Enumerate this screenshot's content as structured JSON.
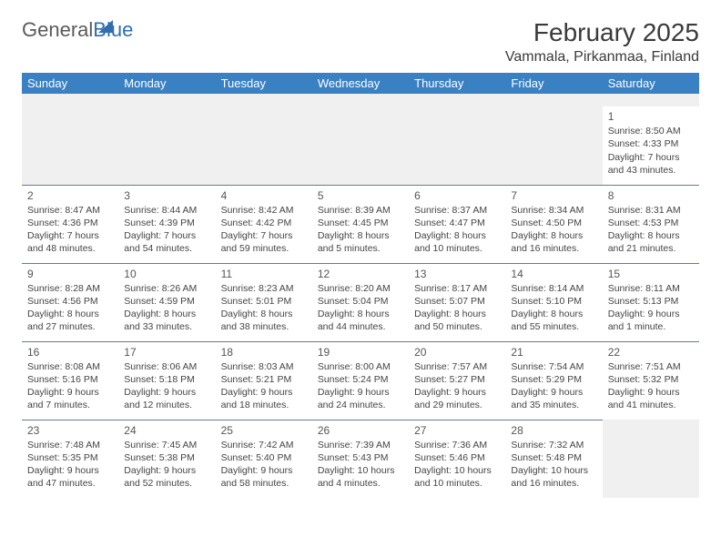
{
  "brand": {
    "part1": "General",
    "part2": "Blue"
  },
  "title": "February 2025",
  "location": "Vammala, Pirkanmaa, Finland",
  "colors": {
    "header_bg": "#3a81c4",
    "header_fg": "#ffffff",
    "rule": "#6b7a8a",
    "spacer_bg": "#f0f0f0",
    "brand_blue": "#2f6fb0",
    "brand_gray": "#5a5a5a"
  },
  "dow": [
    "Sunday",
    "Monday",
    "Tuesday",
    "Wednesday",
    "Thursday",
    "Friday",
    "Saturday"
  ],
  "weeks": [
    [
      null,
      null,
      null,
      null,
      null,
      null,
      {
        "n": "1",
        "sr": "Sunrise: 8:50 AM",
        "ss": "Sunset: 4:33 PM",
        "d1": "Daylight: 7 hours",
        "d2": "and 43 minutes."
      }
    ],
    [
      {
        "n": "2",
        "sr": "Sunrise: 8:47 AM",
        "ss": "Sunset: 4:36 PM",
        "d1": "Daylight: 7 hours",
        "d2": "and 48 minutes."
      },
      {
        "n": "3",
        "sr": "Sunrise: 8:44 AM",
        "ss": "Sunset: 4:39 PM",
        "d1": "Daylight: 7 hours",
        "d2": "and 54 minutes."
      },
      {
        "n": "4",
        "sr": "Sunrise: 8:42 AM",
        "ss": "Sunset: 4:42 PM",
        "d1": "Daylight: 7 hours",
        "d2": "and 59 minutes."
      },
      {
        "n": "5",
        "sr": "Sunrise: 8:39 AM",
        "ss": "Sunset: 4:45 PM",
        "d1": "Daylight: 8 hours",
        "d2": "and 5 minutes."
      },
      {
        "n": "6",
        "sr": "Sunrise: 8:37 AM",
        "ss": "Sunset: 4:47 PM",
        "d1": "Daylight: 8 hours",
        "d2": "and 10 minutes."
      },
      {
        "n": "7",
        "sr": "Sunrise: 8:34 AM",
        "ss": "Sunset: 4:50 PM",
        "d1": "Daylight: 8 hours",
        "d2": "and 16 minutes."
      },
      {
        "n": "8",
        "sr": "Sunrise: 8:31 AM",
        "ss": "Sunset: 4:53 PM",
        "d1": "Daylight: 8 hours",
        "d2": "and 21 minutes."
      }
    ],
    [
      {
        "n": "9",
        "sr": "Sunrise: 8:28 AM",
        "ss": "Sunset: 4:56 PM",
        "d1": "Daylight: 8 hours",
        "d2": "and 27 minutes."
      },
      {
        "n": "10",
        "sr": "Sunrise: 8:26 AM",
        "ss": "Sunset: 4:59 PM",
        "d1": "Daylight: 8 hours",
        "d2": "and 33 minutes."
      },
      {
        "n": "11",
        "sr": "Sunrise: 8:23 AM",
        "ss": "Sunset: 5:01 PM",
        "d1": "Daylight: 8 hours",
        "d2": "and 38 minutes."
      },
      {
        "n": "12",
        "sr": "Sunrise: 8:20 AM",
        "ss": "Sunset: 5:04 PM",
        "d1": "Daylight: 8 hours",
        "d2": "and 44 minutes."
      },
      {
        "n": "13",
        "sr": "Sunrise: 8:17 AM",
        "ss": "Sunset: 5:07 PM",
        "d1": "Daylight: 8 hours",
        "d2": "and 50 minutes."
      },
      {
        "n": "14",
        "sr": "Sunrise: 8:14 AM",
        "ss": "Sunset: 5:10 PM",
        "d1": "Daylight: 8 hours",
        "d2": "and 55 minutes."
      },
      {
        "n": "15",
        "sr": "Sunrise: 8:11 AM",
        "ss": "Sunset: 5:13 PM",
        "d1": "Daylight: 9 hours",
        "d2": "and 1 minute."
      }
    ],
    [
      {
        "n": "16",
        "sr": "Sunrise: 8:08 AM",
        "ss": "Sunset: 5:16 PM",
        "d1": "Daylight: 9 hours",
        "d2": "and 7 minutes."
      },
      {
        "n": "17",
        "sr": "Sunrise: 8:06 AM",
        "ss": "Sunset: 5:18 PM",
        "d1": "Daylight: 9 hours",
        "d2": "and 12 minutes."
      },
      {
        "n": "18",
        "sr": "Sunrise: 8:03 AM",
        "ss": "Sunset: 5:21 PM",
        "d1": "Daylight: 9 hours",
        "d2": "and 18 minutes."
      },
      {
        "n": "19",
        "sr": "Sunrise: 8:00 AM",
        "ss": "Sunset: 5:24 PM",
        "d1": "Daylight: 9 hours",
        "d2": "and 24 minutes."
      },
      {
        "n": "20",
        "sr": "Sunrise: 7:57 AM",
        "ss": "Sunset: 5:27 PM",
        "d1": "Daylight: 9 hours",
        "d2": "and 29 minutes."
      },
      {
        "n": "21",
        "sr": "Sunrise: 7:54 AM",
        "ss": "Sunset: 5:29 PM",
        "d1": "Daylight: 9 hours",
        "d2": "and 35 minutes."
      },
      {
        "n": "22",
        "sr": "Sunrise: 7:51 AM",
        "ss": "Sunset: 5:32 PM",
        "d1": "Daylight: 9 hours",
        "d2": "and 41 minutes."
      }
    ],
    [
      {
        "n": "23",
        "sr": "Sunrise: 7:48 AM",
        "ss": "Sunset: 5:35 PM",
        "d1": "Daylight: 9 hours",
        "d2": "and 47 minutes."
      },
      {
        "n": "24",
        "sr": "Sunrise: 7:45 AM",
        "ss": "Sunset: 5:38 PM",
        "d1": "Daylight: 9 hours",
        "d2": "and 52 minutes."
      },
      {
        "n": "25",
        "sr": "Sunrise: 7:42 AM",
        "ss": "Sunset: 5:40 PM",
        "d1": "Daylight: 9 hours",
        "d2": "and 58 minutes."
      },
      {
        "n": "26",
        "sr": "Sunrise: 7:39 AM",
        "ss": "Sunset: 5:43 PM",
        "d1": "Daylight: 10 hours",
        "d2": "and 4 minutes."
      },
      {
        "n": "27",
        "sr": "Sunrise: 7:36 AM",
        "ss": "Sunset: 5:46 PM",
        "d1": "Daylight: 10 hours",
        "d2": "and 10 minutes."
      },
      {
        "n": "28",
        "sr": "Sunrise: 7:32 AM",
        "ss": "Sunset: 5:48 PM",
        "d1": "Daylight: 10 hours",
        "d2": "and 16 minutes."
      },
      null
    ]
  ]
}
